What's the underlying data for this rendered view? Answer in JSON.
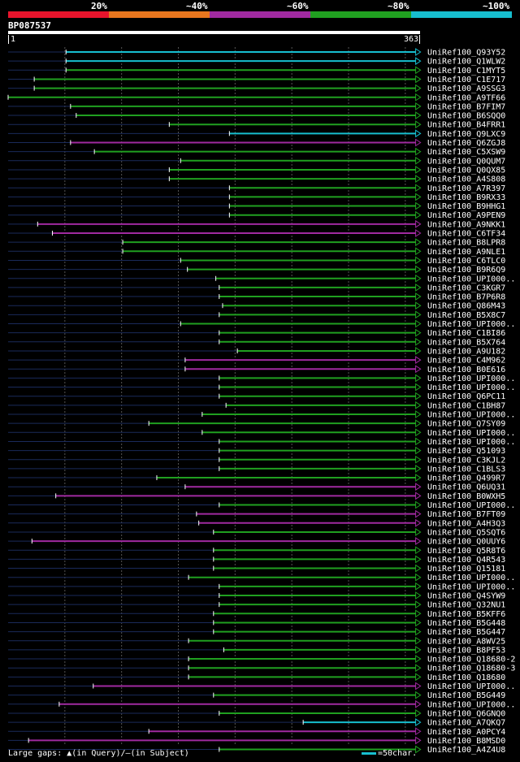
{
  "legend": {
    "colors": [
      "#e8142c",
      "#e8761e",
      "#a02aa0",
      "#20a020",
      "#17becf"
    ],
    "labels": [
      "20%",
      "~40%",
      "~60%",
      "~80%",
      "~100%"
    ]
  },
  "query": {
    "id": "BP087537",
    "start": "1",
    "end": "363"
  },
  "footer": {
    "gaps_label": "Large gaps:",
    "query_mark": "▲(in Query)/",
    "subject_mark": "–",
    "subject_text": "(in Subject)",
    "scale_text": "=50char."
  },
  "chart_data": {
    "type": "alignment",
    "query_length": 363,
    "tick_step": 50,
    "hits": [
      {
        "name": "UniRef100_Q93Y52",
        "start": 52,
        "end": 363,
        "color": "#17becf"
      },
      {
        "name": "UniRef100_Q1WLW2",
        "start": 52,
        "end": 363,
        "color": "#17becf"
      },
      {
        "name": "UniRef100_C1MYT5",
        "start": 52,
        "end": 363,
        "color": "#20a020"
      },
      {
        "name": "UniRef100_C1E717",
        "start": 24,
        "end": 363,
        "color": "#20a020"
      },
      {
        "name": "UniRef100_A9SSG3",
        "start": 24,
        "end": 363,
        "color": "#20a020"
      },
      {
        "name": "UniRef100_A9TF66",
        "start": 1,
        "end": 363,
        "color": "#20a020"
      },
      {
        "name": "UniRef100_B7FIM7",
        "start": 56,
        "end": 363,
        "color": "#20a020"
      },
      {
        "name": "UniRef100_B6SQQ0",
        "start": 61,
        "end": 363,
        "color": "#20a020"
      },
      {
        "name": "UniRef100_B4FRR1",
        "start": 143,
        "end": 363,
        "color": "#20a020"
      },
      {
        "name": "UniRef100_Q9LXC9",
        "start": 196,
        "end": 363,
        "color": "#17becf"
      },
      {
        "name": "UniRef100_Q6ZGJ8",
        "start": 56,
        "end": 363,
        "color": "#a02aa0"
      },
      {
        "name": "UniRef100_C5XSW9",
        "start": 77,
        "end": 363,
        "color": "#20a020"
      },
      {
        "name": "UniRef100_Q0QUM7",
        "start": 153,
        "end": 363,
        "color": "#20a020"
      },
      {
        "name": "UniRef100_Q0QX85",
        "start": 143,
        "end": 363,
        "color": "#20a020"
      },
      {
        "name": "UniRef100_A4S808",
        "start": 143,
        "end": 363,
        "color": "#20a020"
      },
      {
        "name": "UniRef100_A7R397",
        "start": 196,
        "end": 363,
        "color": "#20a020"
      },
      {
        "name": "UniRef100_B9RX33",
        "start": 196,
        "end": 363,
        "color": "#20a020"
      },
      {
        "name": "UniRef100_B9HHG1",
        "start": 196,
        "end": 363,
        "color": "#20a020"
      },
      {
        "name": "UniRef100_A9PEN9",
        "start": 196,
        "end": 363,
        "color": "#20a020"
      },
      {
        "name": "UniRef100_A9NKK1",
        "start": 27,
        "end": 363,
        "color": "#a02aa0"
      },
      {
        "name": "UniRef100_C6TF34",
        "start": 40,
        "end": 363,
        "color": "#a02aa0"
      },
      {
        "name": "UniRef100_B8LPR8",
        "start": 102,
        "end": 363,
        "color": "#20a020"
      },
      {
        "name": "UniRef100_A9NLE1",
        "start": 102,
        "end": 363,
        "color": "#20a020"
      },
      {
        "name": "UniRef100_C6TLC0",
        "start": 153,
        "end": 363,
        "color": "#20a020"
      },
      {
        "name": "UniRef100_B9R6Q9",
        "start": 159,
        "end": 363,
        "color": "#20a020"
      },
      {
        "name": "UniRef100_UPI000..",
        "start": 184,
        "end": 363,
        "color": "#20a020"
      },
      {
        "name": "UniRef100_C3KGR7",
        "start": 187,
        "end": 363,
        "color": "#20a020"
      },
      {
        "name": "UniRef100_B7P6R8",
        "start": 187,
        "end": 363,
        "color": "#20a020"
      },
      {
        "name": "UniRef100_Q86M43",
        "start": 190,
        "end": 363,
        "color": "#20a020"
      },
      {
        "name": "UniRef100_B5X8C7",
        "start": 187,
        "end": 363,
        "color": "#20a020"
      },
      {
        "name": "UniRef100_UPI000..",
        "start": 153,
        "end": 363,
        "color": "#20a020"
      },
      {
        "name": "UniRef100_C1BI86",
        "start": 187,
        "end": 363,
        "color": "#20a020"
      },
      {
        "name": "UniRef100_B5X764",
        "start": 187,
        "end": 363,
        "color": "#20a020"
      },
      {
        "name": "UniRef100_A9U182",
        "start": 203,
        "end": 363,
        "color": "#20a020"
      },
      {
        "name": "UniRef100_C4M962",
        "start": 157,
        "end": 363,
        "color": "#a02aa0"
      },
      {
        "name": "UniRef100_B0E616",
        "start": 157,
        "end": 363,
        "color": "#a02aa0"
      },
      {
        "name": "UniRef100_UPI000..",
        "start": 187,
        "end": 363,
        "color": "#20a020"
      },
      {
        "name": "UniRef100_UPI000..",
        "start": 187,
        "end": 363,
        "color": "#20a020"
      },
      {
        "name": "UniRef100_Q6PC11",
        "start": 187,
        "end": 363,
        "color": "#20a020"
      },
      {
        "name": "UniRef100_C1BH87",
        "start": 193,
        "end": 363,
        "color": "#20a020"
      },
      {
        "name": "UniRef100_UPI000..",
        "start": 172,
        "end": 363,
        "color": "#20a020"
      },
      {
        "name": "UniRef100_Q7SY09",
        "start": 125,
        "end": 363,
        "color": "#20a020"
      },
      {
        "name": "UniRef100_UPI000..",
        "start": 172,
        "end": 363,
        "color": "#20a020"
      },
      {
        "name": "UniRef100_UPI000..",
        "start": 187,
        "end": 363,
        "color": "#20a020"
      },
      {
        "name": "UniRef100_Q51093",
        "start": 187,
        "end": 363,
        "color": "#20a020"
      },
      {
        "name": "UniRef100_C3KJL2",
        "start": 187,
        "end": 363,
        "color": "#20a020"
      },
      {
        "name": "UniRef100_C1BLS3",
        "start": 187,
        "end": 363,
        "color": "#20a020"
      },
      {
        "name": "UniRef100_Q499R7",
        "start": 132,
        "end": 363,
        "color": "#20a020"
      },
      {
        "name": "UniRef100_Q6UQ31",
        "start": 157,
        "end": 363,
        "color": "#a02aa0"
      },
      {
        "name": "UniRef100_B0WXH5",
        "start": 43,
        "end": 363,
        "color": "#a02aa0"
      },
      {
        "name": "UniRef100_UPI000..",
        "start": 187,
        "end": 363,
        "color": "#20a020"
      },
      {
        "name": "UniRef100_B7FT09",
        "start": 167,
        "end": 363,
        "color": "#a02aa0"
      },
      {
        "name": "UniRef100_A4H3Q3",
        "start": 169,
        "end": 363,
        "color": "#a02aa0"
      },
      {
        "name": "UniRef100_Q5SQT6",
        "start": 182,
        "end": 363,
        "color": "#20a020"
      },
      {
        "name": "UniRef100_Q0UUY6",
        "start": 22,
        "end": 363,
        "color": "#a02aa0"
      },
      {
        "name": "UniRef100_Q5R8T6",
        "start": 182,
        "end": 363,
        "color": "#20a020"
      },
      {
        "name": "UniRef100_Q4R543",
        "start": 182,
        "end": 363,
        "color": "#20a020"
      },
      {
        "name": "UniRef100_Q15181",
        "start": 182,
        "end": 363,
        "color": "#20a020"
      },
      {
        "name": "UniRef100_UPI000..",
        "start": 160,
        "end": 363,
        "color": "#20a020"
      },
      {
        "name": "UniRef100_UPI000..",
        "start": 187,
        "end": 363,
        "color": "#20a020"
      },
      {
        "name": "UniRef100_Q4SYW9",
        "start": 187,
        "end": 363,
        "color": "#20a020"
      },
      {
        "name": "UniRef100_Q32NU1",
        "start": 187,
        "end": 363,
        "color": "#20a020"
      },
      {
        "name": "UniRef100_B5KFF6",
        "start": 182,
        "end": 363,
        "color": "#20a020"
      },
      {
        "name": "UniRef100_B5G448",
        "start": 182,
        "end": 363,
        "color": "#20a020"
      },
      {
        "name": "UniRef100_B5G447",
        "start": 182,
        "end": 363,
        "color": "#20a020"
      },
      {
        "name": "UniRef100_A8WV25",
        "start": 160,
        "end": 363,
        "color": "#20a020"
      },
      {
        "name": "UniRef100_B8PF53",
        "start": 191,
        "end": 363,
        "color": "#20a020"
      },
      {
        "name": "UniRef100_Q18680-2",
        "start": 160,
        "end": 363,
        "color": "#20a020"
      },
      {
        "name": "UniRef100_Q18680-3",
        "start": 160,
        "end": 363,
        "color": "#20a020"
      },
      {
        "name": "UniRef100_Q18680",
        "start": 160,
        "end": 363,
        "color": "#20a020"
      },
      {
        "name": "UniRef100_UPI000..",
        "start": 76,
        "end": 363,
        "color": "#a02aa0"
      },
      {
        "name": "UniRef100_B5G449",
        "start": 182,
        "end": 363,
        "color": "#20a020"
      },
      {
        "name": "UniRef100_UPI000..",
        "start": 46,
        "end": 363,
        "color": "#a02aa0"
      },
      {
        "name": "UniRef100_Q6GNQ0",
        "start": 187,
        "end": 363,
        "color": "#20a020"
      },
      {
        "name": "UniRef100_A7QKQ7",
        "start": 261,
        "end": 363,
        "color": "#17becf"
      },
      {
        "name": "UniRef100_A0PCY4",
        "start": 125,
        "end": 363,
        "color": "#a02aa0"
      },
      {
        "name": "UniRef100_B8MSD0",
        "start": 19,
        "end": 363,
        "color": "#a02aa0"
      },
      {
        "name": "UniRef100_A4Z4U8",
        "start": 187,
        "end": 363,
        "color": "#20a020"
      }
    ]
  }
}
